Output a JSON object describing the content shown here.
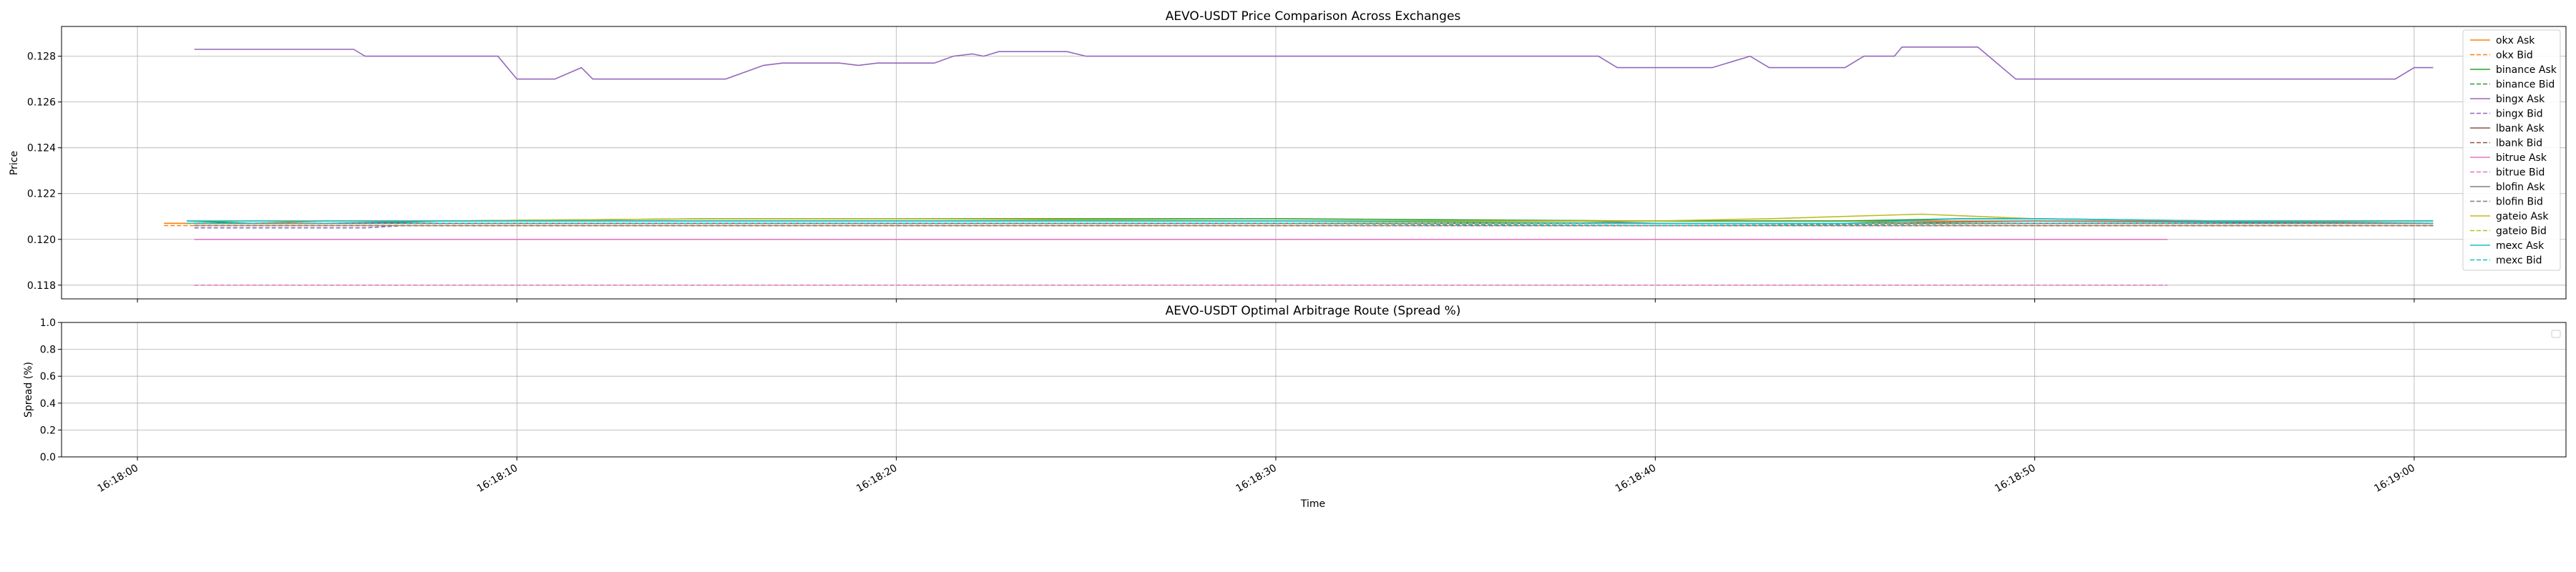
{
  "chart_data": [
    {
      "type": "line",
      "title": "AEVO-USDT Price Comparison Across Exchanges",
      "xlabel": "",
      "ylabel": "Price",
      "x_range": [
        "16:17:58",
        "16:19:04"
      ],
      "ylim": [
        0.1174,
        0.1293
      ],
      "yticks": [
        0.118,
        0.12,
        0.122,
        0.124,
        0.126,
        0.128
      ],
      "ytick_labels": [
        "0.118",
        "0.120",
        "0.122",
        "0.124",
        "0.126",
        "0.128"
      ],
      "grid": true,
      "legend_position": "top-right",
      "series": [
        {
          "name": "okx Ask",
          "color": "#ff7f0e",
          "dash": "solid",
          "points": [
            [
              "16:18:00.7",
              0.1207
            ],
            [
              "16:18:01",
              0.1207
            ],
            [
              "16:18:03",
              0.1207
            ],
            [
              "16:18:05",
              0.1208
            ],
            [
              "16:18:10",
              0.1208
            ],
            [
              "16:18:20",
              0.1208
            ],
            [
              "16:18:30",
              0.1208
            ],
            [
              "16:18:40",
              0.1208
            ],
            [
              "16:18:45",
              0.1208
            ],
            [
              "16:18:50",
              0.1208
            ],
            [
              "16:18:55",
              0.1208
            ],
            [
              "16:19:00.5",
              0.1207
            ]
          ]
        },
        {
          "name": "okx Bid",
          "color": "#ff7f0e",
          "dash": "dashed",
          "points": [
            [
              "16:18:00.7",
              0.1206
            ],
            [
              "16:18:05",
              0.1206
            ],
            [
              "16:18:10",
              0.1206
            ],
            [
              "16:18:20",
              0.1206
            ],
            [
              "16:18:30",
              0.1206
            ],
            [
              "16:18:40",
              0.1206
            ],
            [
              "16:18:50",
              0.1206
            ],
            [
              "16:19:00.5",
              0.1206
            ]
          ]
        },
        {
          "name": "binance Ask",
          "color": "#2ca02c",
          "dash": "solid",
          "points": [
            [
              "16:18:01.3",
              0.1208
            ],
            [
              "16:18:03",
              0.1207
            ],
            [
              "16:18:06",
              0.1207
            ],
            [
              "16:18:08",
              0.1208
            ],
            [
              "16:18:15",
              0.1209
            ],
            [
              "16:18:20",
              0.1209
            ],
            [
              "16:18:30",
              0.1209
            ],
            [
              "16:18:40",
              0.1208
            ],
            [
              "16:18:45",
              0.1208
            ],
            [
              "16:18:48",
              0.1209
            ],
            [
              "16:18:50",
              0.1209
            ],
            [
              "16:18:55",
              0.1208
            ],
            [
              "16:19:00.5",
              0.1208
            ]
          ]
        },
        {
          "name": "binance Bid",
          "color": "#2ca02c",
          "dash": "dashed",
          "points": [
            [
              "16:18:01.3",
              0.1207
            ],
            [
              "16:18:10",
              0.1207
            ],
            [
              "16:18:20",
              0.1207
            ],
            [
              "16:18:30",
              0.1207
            ],
            [
              "16:18:40",
              0.1207
            ],
            [
              "16:18:50",
              0.1207
            ],
            [
              "16:19:00.5",
              0.1207
            ]
          ]
        },
        {
          "name": "bingx Ask",
          "color": "#9467bd",
          "dash": "solid",
          "points": [
            [
              "16:18:01.5",
              0.1283
            ],
            [
              "16:18:05.7",
              0.1283
            ],
            [
              "16:18:06",
              0.128
            ],
            [
              "16:18:09.5",
              0.128
            ],
            [
              "16:18:10",
              0.127
            ],
            [
              "16:18:11",
              0.127
            ],
            [
              "16:18:11.7",
              0.1275
            ],
            [
              "16:18:12",
              0.127
            ],
            [
              "16:18:15.5",
              0.127
            ],
            [
              "16:18:16.5",
              0.1276
            ],
            [
              "16:18:17",
              0.1277
            ],
            [
              "16:18:18.5",
              0.1277
            ],
            [
              "16:18:19",
              0.1276
            ],
            [
              "16:18:19.5",
              0.1277
            ],
            [
              "16:18:21",
              0.1277
            ],
            [
              "16:18:21.5",
              0.128
            ],
            [
              "16:18:22",
              0.1281
            ],
            [
              "16:18:22.3",
              0.128
            ],
            [
              "16:18:22.7",
              0.1282
            ],
            [
              "16:18:24.5",
              0.1282
            ],
            [
              "16:18:25",
              0.128
            ],
            [
              "16:18:38.5",
              0.128
            ],
            [
              "16:18:39",
              0.1275
            ],
            [
              "16:18:41.5",
              0.1275
            ],
            [
              "16:18:42.5",
              0.128
            ],
            [
              "16:18:43",
              0.1275
            ],
            [
              "16:18:45",
              0.1275
            ],
            [
              "16:18:45.5",
              0.128
            ],
            [
              "16:18:46.3",
              0.128
            ],
            [
              "16:18:46.5",
              0.1284
            ],
            [
              "16:18:48.5",
              0.1284
            ],
            [
              "16:18:49.5",
              0.127
            ],
            [
              "16:18:59.5",
              0.127
            ],
            [
              "16:19:00",
              0.1275
            ],
            [
              "16:19:00.5",
              0.1275
            ]
          ]
        },
        {
          "name": "bingx Bid",
          "color": "#9467bd",
          "dash": "dashed",
          "points": [
            [
              "16:18:01.5",
              0.1205
            ],
            [
              "16:18:06",
              0.1205
            ],
            [
              "16:18:07",
              0.1206
            ],
            [
              "16:18:20",
              0.1206
            ],
            [
              "16:18:30",
              0.1206
            ],
            [
              "16:18:40",
              0.1206
            ],
            [
              "16:18:50",
              0.1206
            ],
            [
              "16:19:00.5",
              0.1206
            ]
          ]
        },
        {
          "name": "lbank Ask",
          "color": "#8c564b",
          "dash": "solid",
          "points": [
            [
              "16:18:01.5",
              0.1207
            ],
            [
              "16:18:10",
              0.1207
            ],
            [
              "16:18:20",
              0.1207
            ],
            [
              "16:18:30",
              0.1207
            ],
            [
              "16:18:40",
              0.1207
            ],
            [
              "16:18:50",
              0.1207
            ],
            [
              "16:19:00.5",
              0.1207
            ]
          ]
        },
        {
          "name": "lbank Bid",
          "color": "#8c564b",
          "dash": "dashed",
          "points": [
            [
              "16:18:01.5",
              0.1206
            ],
            [
              "16:18:10",
              0.1206
            ],
            [
              "16:18:20",
              0.1206
            ],
            [
              "16:18:30",
              0.1206
            ],
            [
              "16:18:40",
              0.1206
            ],
            [
              "16:18:50",
              0.1206
            ],
            [
              "16:19:00.5",
              0.1206
            ]
          ]
        },
        {
          "name": "bitrue Ask",
          "color": "#e377c2",
          "dash": "solid",
          "points": [
            [
              "16:18:01.5",
              0.12
            ],
            [
              "16:18:10",
              0.12
            ],
            [
              "16:18:20",
              0.12
            ],
            [
              "16:18:30",
              0.12
            ],
            [
              "16:18:40",
              0.12
            ],
            [
              "16:18:50",
              0.12
            ],
            [
              "16:18:53.5",
              0.12
            ]
          ]
        },
        {
          "name": "bitrue Bid",
          "color": "#e377c2",
          "dash": "dashed",
          "points": [
            [
              "16:18:01.5",
              0.118
            ],
            [
              "16:18:10",
              0.118
            ],
            [
              "16:18:20",
              0.118
            ],
            [
              "16:18:30",
              0.118
            ],
            [
              "16:18:40",
              0.118
            ],
            [
              "16:18:50",
              0.118
            ],
            [
              "16:18:53.5",
              0.118
            ]
          ]
        },
        {
          "name": "blofin Ask",
          "color": "#7f7f7f",
          "dash": "solid",
          "points": [
            [
              "16:18:01.5",
              0.1207
            ],
            [
              "16:18:05",
              0.1207
            ],
            [
              "16:18:08",
              0.1208
            ],
            [
              "16:18:20",
              0.1208
            ],
            [
              "16:18:30",
              0.1208
            ],
            [
              "16:18:38",
              0.1208
            ],
            [
              "16:18:40",
              0.1207
            ],
            [
              "16:18:45",
              0.1207
            ],
            [
              "16:18:50",
              0.1208
            ],
            [
              "16:19:00.5",
              0.1207
            ]
          ]
        },
        {
          "name": "blofin Bid",
          "color": "#7f7f7f",
          "dash": "dashed",
          "points": [
            [
              "16:18:01.5",
              0.1206
            ],
            [
              "16:18:10",
              0.1206
            ],
            [
              "16:18:20",
              0.1206
            ],
            [
              "16:18:30",
              0.1206
            ],
            [
              "16:18:40",
              0.1206
            ],
            [
              "16:18:50",
              0.1206
            ],
            [
              "16:19:00.5",
              0.1206
            ]
          ]
        },
        {
          "name": "gateio Ask",
          "color": "#bcbd22",
          "dash": "solid",
          "points": [
            [
              "16:18:01.3",
              0.1208
            ],
            [
              "16:18:05",
              0.1208
            ],
            [
              "16:18:08",
              0.1208
            ],
            [
              "16:18:15",
              0.1209
            ],
            [
              "16:18:20",
              0.1209
            ],
            [
              "16:18:30",
              0.1208
            ],
            [
              "16:18:40",
              0.1208
            ],
            [
              "16:18:43",
              0.1209
            ],
            [
              "16:18:47",
              0.1211
            ],
            [
              "16:18:48.5",
              0.121
            ],
            [
              "16:18:50",
              0.1209
            ],
            [
              "16:18:55",
              0.1208
            ],
            [
              "16:19:00.5",
              0.1208
            ]
          ]
        },
        {
          "name": "gateio Bid",
          "color": "#bcbd22",
          "dash": "dashed",
          "points": [
            [
              "16:18:01.3",
              0.1207
            ],
            [
              "16:18:10",
              0.1207
            ],
            [
              "16:18:20",
              0.1207
            ],
            [
              "16:18:30",
              0.1207
            ],
            [
              "16:18:40",
              0.1207
            ],
            [
              "16:18:50",
              0.1207
            ],
            [
              "16:19:00.5",
              0.1207
            ]
          ]
        },
        {
          "name": "mexc Ask",
          "color": "#17becf",
          "dash": "solid",
          "points": [
            [
              "16:18:01.3",
              0.1208
            ],
            [
              "16:18:10",
              0.1208
            ],
            [
              "16:18:20",
              0.1208
            ],
            [
              "16:18:30",
              0.1208
            ],
            [
              "16:18:40",
              0.1207
            ],
            [
              "16:18:45",
              0.1207
            ],
            [
              "16:18:48",
              0.1209
            ],
            [
              "16:18:50",
              0.1209
            ],
            [
              "16:18:55",
              0.1208
            ],
            [
              "16:19:00.5",
              0.1208
            ]
          ]
        },
        {
          "name": "mexc Bid",
          "color": "#17becf",
          "dash": "dashed",
          "points": [
            [
              "16:18:01.3",
              0.1207
            ],
            [
              "16:18:10",
              0.1207
            ],
            [
              "16:18:20",
              0.1207
            ],
            [
              "16:18:30",
              0.1207
            ],
            [
              "16:18:40",
              0.1206
            ],
            [
              "16:18:50",
              0.1207
            ],
            [
              "16:19:00.5",
              0.1207
            ]
          ]
        }
      ]
    },
    {
      "type": "line",
      "title": "AEVO-USDT Optimal Arbitrage Route (Spread %)",
      "xlabel": "Time",
      "ylabel": "Spread (%)",
      "x_range": [
        "16:17:58",
        "16:19:04"
      ],
      "ylim": [
        0.0,
        1.0
      ],
      "yticks": [
        0.0,
        0.2,
        0.4,
        0.6,
        0.8,
        1.0
      ],
      "ytick_labels": [
        "0.0",
        "0.2",
        "0.4",
        "0.6",
        "0.8",
        "1.0"
      ],
      "xticks": [
        "16:18:00",
        "16:18:10",
        "16:18:20",
        "16:18:30",
        "16:18:40",
        "16:18:50",
        "16:19:00"
      ],
      "grid": true,
      "legend_position": "top-right",
      "series": []
    }
  ]
}
